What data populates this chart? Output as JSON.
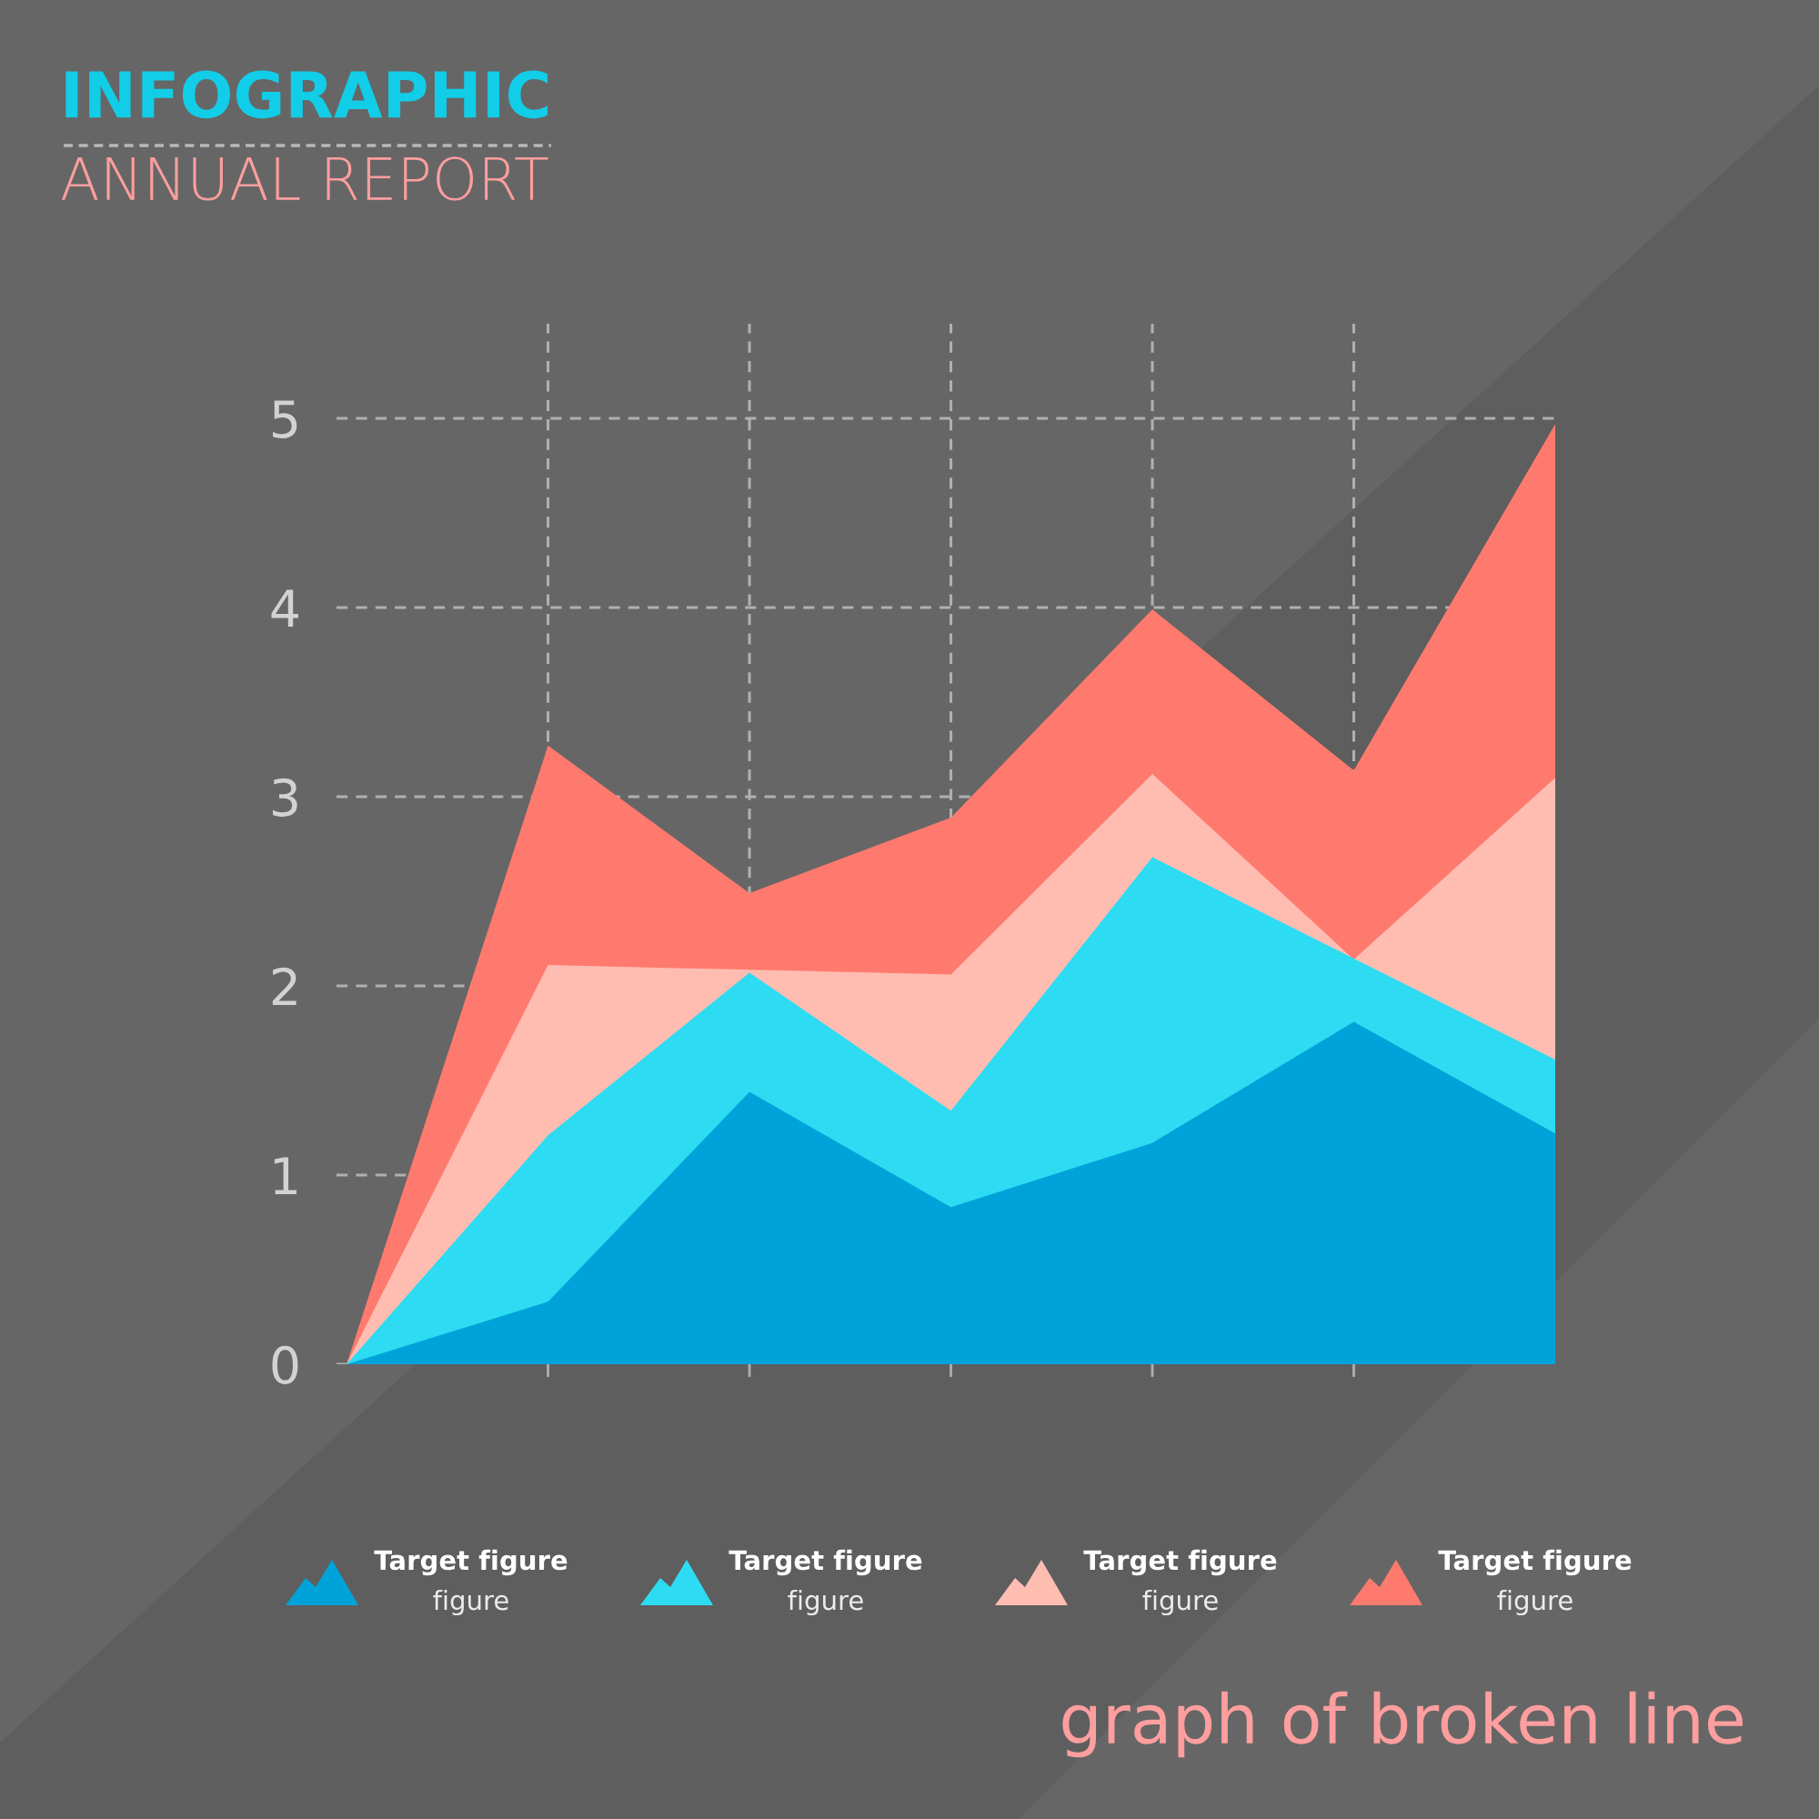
{
  "chart_data": {
    "type": "area",
    "title": "INFOGRAPHIC",
    "subtitle": "ANNUAL REPORT",
    "annotations": [
      "graph of broken line"
    ],
    "categories": [
      null,
      null,
      null,
      null,
      null,
      null,
      null
    ],
    "ylim": [
      0,
      5.5
    ],
    "yticks": [
      0,
      1,
      2,
      3,
      4,
      5
    ],
    "grid": true,
    "legend": "bottom",
    "tick_labels": "y",
    "series": [
      {
        "name": "Target figure\nfigure",
        "color": "#00a3d9",
        "values": [
          0,
          0.33,
          1.44,
          0.83,
          1.17,
          1.81,
          1.22
        ]
      },
      {
        "name": "Target figure\nfigure",
        "color": "#2ddcf2",
        "values": [
          0,
          1.21,
          2.07,
          1.34,
          2.68,
          null,
          1.61
        ]
      },
      {
        "name": "Target figure\nfigure",
        "color": "#ffbdb2",
        "values": [
          0,
          2.11,
          null,
          2.06,
          3.12,
          2.14,
          3.1
        ]
      },
      {
        "name": "Target figure\nfigure",
        "color": "#ff7a6e",
        "values": [
          0,
          3.27,
          2.49,
          2.89,
          3.99,
          3.14,
          4.97
        ]
      }
    ]
  }
}
